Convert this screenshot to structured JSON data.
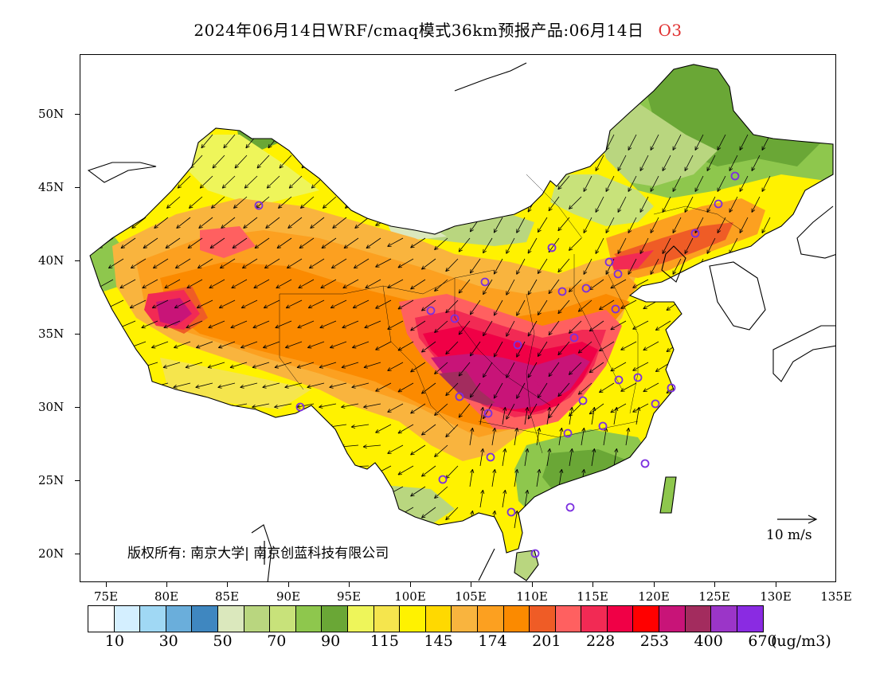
{
  "header": {
    "title": "2024年06月14日WRF/cmaq模式36km预报产品:06月14日",
    "species": "O3"
  },
  "map": {
    "lat_labels": [
      "50N",
      "45N",
      "40N",
      "35N",
      "30N",
      "25N",
      "20N"
    ],
    "lon_labels": [
      "75E",
      "80E",
      "85E",
      "90E",
      "95E",
      "100E",
      "105E",
      "110E",
      "115E",
      "120E",
      "125E",
      "130E",
      "135E"
    ],
    "copyright": "版权所有: 南京大学| 南京创蓝科技有限公司",
    "wind_reference": "10 m/s",
    "station_marker_color": "#7b2fe0",
    "coastline_color": "#000000"
  },
  "legend": {
    "colors": [
      "#ffffff",
      "#d4efff",
      "#a0d8f4",
      "#6aaedb",
      "#3f87c0",
      "#dbe8bd",
      "#b9d67f",
      "#c8e27a",
      "#8ec74d",
      "#6aa736",
      "#eef55a",
      "#f5e54d",
      "#fff200",
      "#ffd900",
      "#f9b43e",
      "#fca020",
      "#fb8a00",
      "#ef5c26",
      "#ff6060",
      "#f22a54",
      "#f00046",
      "#ff0000",
      "#c81478",
      "#a32c5e",
      "#9b35c8",
      "#8a2be2"
    ],
    "labels": [
      "10",
      "30",
      "50",
      "70",
      "90",
      "115",
      "145",
      "174",
      "201",
      "228",
      "253",
      "400",
      "670"
    ],
    "unit": "(ug/m3)"
  }
}
